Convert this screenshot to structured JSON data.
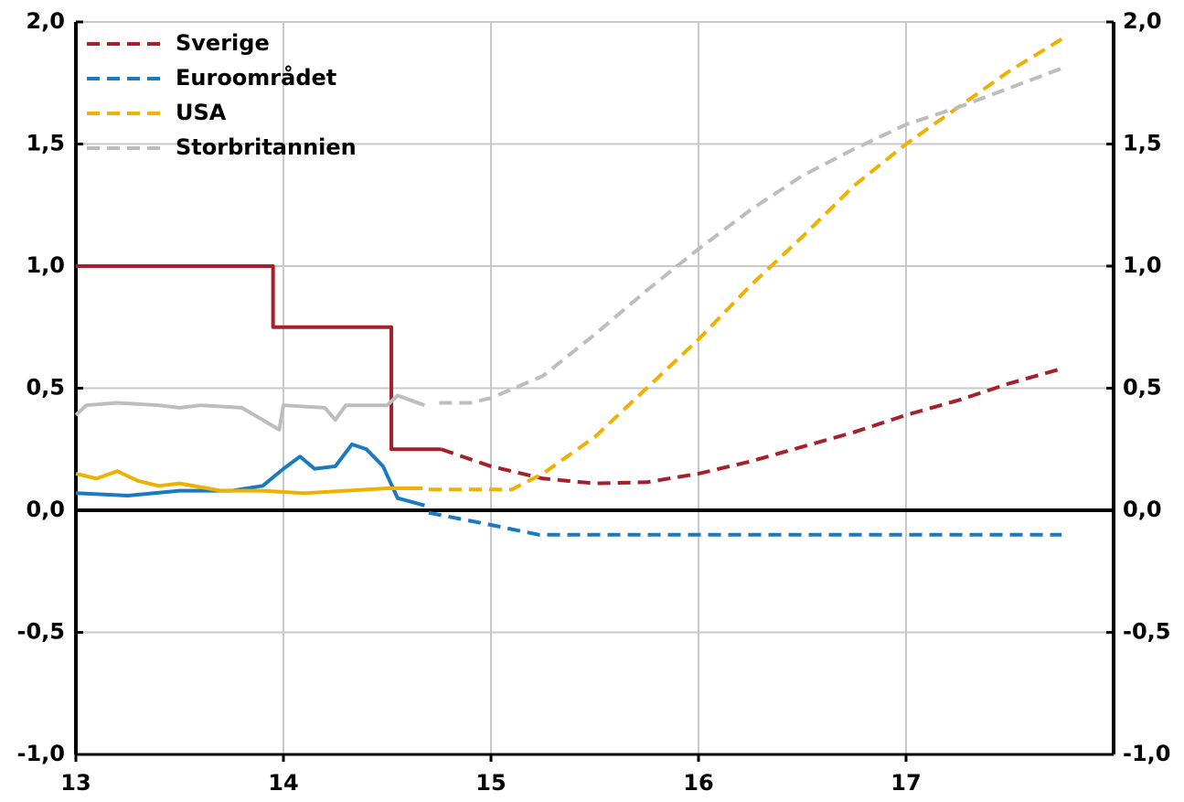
{
  "chart_data": {
    "type": "line",
    "xlim": [
      13,
      18
    ],
    "xticks": [
      13,
      14,
      15,
      16,
      17
    ],
    "ylim": [
      -1,
      2
    ],
    "yticks": [
      {
        "value": -1,
        "label": "-1,0"
      },
      {
        "value": -0.5,
        "label": "-0,5"
      },
      {
        "value": 0,
        "label": "0,0"
      },
      {
        "value": 0.5,
        "label": "0,5"
      },
      {
        "value": 1,
        "label": "1,0"
      },
      {
        "value": 1.5,
        "label": "1,5"
      },
      {
        "value": 2,
        "label": "2,0"
      }
    ],
    "y2lim": [
      -1,
      2
    ],
    "y2ticks": [
      {
        "value": -1,
        "label": "-1,0"
      },
      {
        "value": -0.5,
        "label": "-0,5"
      },
      {
        "value": 0,
        "label": "0,0"
      },
      {
        "value": 0.5,
        "label": "0,5"
      },
      {
        "value": 1,
        "label": "1,0"
      },
      {
        "value": 1.5,
        "label": "1,5"
      },
      {
        "value": 2,
        "label": "2,0"
      }
    ],
    "grid": true,
    "legend": "upper left",
    "series": [
      {
        "name": "Sverige",
        "color": "#a4202a",
        "outcome": {
          "x": [
            13,
            13.95,
            13.95,
            14.52,
            14.52,
            14.76
          ],
          "values": [
            1,
            1,
            0.75,
            0.75,
            0.25,
            0.25
          ]
        },
        "forecast": {
          "x": [
            14.76,
            15,
            15.25,
            15.5,
            15.75,
            16,
            16.25,
            16.5,
            16.75,
            17,
            17.25,
            17.5,
            17.75
          ],
          "values": [
            0.25,
            0.18,
            0.13,
            0.11,
            0.115,
            0.15,
            0.2,
            0.26,
            0.32,
            0.39,
            0.45,
            0.52,
            0.58
          ]
        }
      },
      {
        "name": "Euroområdet",
        "color": "#1a7abf",
        "outcome": {
          "x": [
            13,
            13.25,
            13.5,
            13.75,
            13.9,
            14,
            14.08,
            14.15,
            14.25,
            14.33,
            14.4,
            14.48,
            14.55,
            14.68
          ],
          "values": [
            0.07,
            0.06,
            0.08,
            0.08,
            0.1,
            0.17,
            0.22,
            0.17,
            0.18,
            0.27,
            0.25,
            0.18,
            0.05,
            0.02
          ]
        },
        "forecast": {
          "x": [
            14.7,
            15,
            15.23,
            17.75
          ],
          "values": [
            -0.01,
            -0.06,
            -0.1,
            -0.1
          ]
        }
      },
      {
        "name": "USA",
        "color": "#f0b000",
        "outcome": {
          "x": [
            13,
            13.1,
            13.2,
            13.3,
            13.4,
            13.5,
            13.7,
            13.9,
            14.1,
            14.3,
            14.5,
            14.67
          ],
          "values": [
            0.15,
            0.13,
            0.16,
            0.12,
            0.1,
            0.11,
            0.08,
            0.08,
            0.07,
            0.08,
            0.09,
            0.09
          ]
        },
        "forecast": {
          "x": [
            14.7,
            15.1,
            15.25,
            15.5,
            15.75,
            16,
            16.25,
            16.5,
            16.75,
            17,
            17.25,
            17.5,
            17.75
          ],
          "values": [
            0.085,
            0.085,
            0.15,
            0.3,
            0.5,
            0.7,
            0.92,
            1.12,
            1.33,
            1.5,
            1.65,
            1.8,
            1.93
          ]
        }
      },
      {
        "name": "Storbritannien",
        "color": "#bdbdbd",
        "outcome": {
          "x": [
            13,
            13.05,
            13.2,
            13.4,
            13.5,
            13.6,
            13.8,
            13.98,
            14,
            14.2,
            14.25,
            14.3,
            14.5,
            14.55,
            14.68
          ],
          "values": [
            0.39,
            0.43,
            0.44,
            0.43,
            0.42,
            0.43,
            0.42,
            0.33,
            0.43,
            0.42,
            0.37,
            0.43,
            0.43,
            0.47,
            0.43
          ]
        },
        "forecast": {
          "x": [
            14.75,
            14.9,
            15,
            15.25,
            15.5,
            15.75,
            16,
            16.25,
            16.5,
            16.75,
            17,
            17.25,
            17.5,
            17.75
          ],
          "values": [
            0.44,
            0.44,
            0.46,
            0.55,
            0.72,
            0.9,
            1.07,
            1.23,
            1.37,
            1.48,
            1.58,
            1.65,
            1.73,
            1.81
          ]
        }
      }
    ]
  }
}
